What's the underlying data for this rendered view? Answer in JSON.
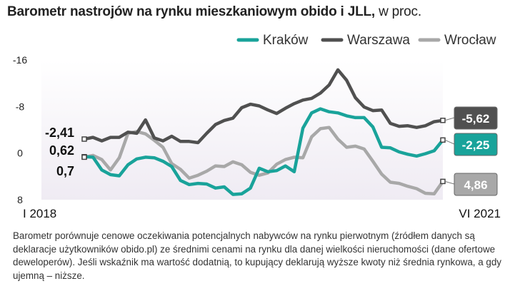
{
  "title": {
    "main": "Barometr nastrojów na rynku mieszkaniowym obido i JLL,",
    "unit": " w proc."
  },
  "note": "Barometr porównuje cenowe oczekiwania potencjalnych nabywców na rynku pierwotnym (źródłem danych są deklaracje użytkowników obido.pl) ze średnimi cenami na rynku dla danej wielkości nieruchomości (dane ofertowe deweloperów). Jeśli wskaźnik ma wartość dodatnią, to kupujący deklarują wyższe kwoty niż średnia rynkowa, a gdy ujemną – niższe.",
  "chart_data": {
    "type": "line",
    "title": "Barometr nastrojów na rynku mieszkaniowym obido i JLL, w proc.",
    "x_start_label": "I 2018",
    "x_end_label": "VI 2021",
    "x": [
      "2018-01",
      "2018-02",
      "2018-03",
      "2018-04",
      "2018-05",
      "2018-06",
      "2018-07",
      "2018-08",
      "2018-09",
      "2018-10",
      "2018-11",
      "2018-12",
      "2019-01",
      "2019-02",
      "2019-03",
      "2019-04",
      "2019-05",
      "2019-06",
      "2019-07",
      "2019-08",
      "2019-09",
      "2019-10",
      "2019-11",
      "2019-12",
      "2020-01",
      "2020-02",
      "2020-03",
      "2020-04",
      "2020-05",
      "2020-06",
      "2020-07",
      "2020-08",
      "2020-09",
      "2020-10",
      "2020-11",
      "2020-12",
      "2021-01",
      "2021-02",
      "2021-03",
      "2021-04",
      "2021-05",
      "2021-06"
    ],
    "y_ticks": [
      -16,
      -8,
      0,
      8
    ],
    "ylim": [
      -16,
      8
    ],
    "y_inverted": true,
    "grid": false,
    "legend_position": "top-right",
    "series": [
      {
        "name": "Kraków",
        "color": "#19a39a",
        "values": [
          0.62,
          0.7,
          2.9,
          3.7,
          3.9,
          2.0,
          1.0,
          0.7,
          0.8,
          1.4,
          2.3,
          4.7,
          5.4,
          5.2,
          5.3,
          6.0,
          5.8,
          7.1,
          7.0,
          6.0,
          2.6,
          3.2,
          3.0,
          2.2,
          3.2,
          -4.3,
          -6.9,
          -7.6,
          -7.1,
          -6.9,
          -6.4,
          -6.1,
          -6.1,
          -4.5,
          -1.0,
          -0.9,
          -0.2,
          0.2,
          0.5,
          0.1,
          -0.4,
          -2.25
        ]
      },
      {
        "name": "Warszawa",
        "color": "#505050",
        "values": [
          -2.41,
          -2.7,
          -2.1,
          -2.7,
          -2.7,
          -3.6,
          -3.4,
          -5.7,
          -2.6,
          -2.1,
          -2.9,
          -2.0,
          -2.0,
          -1.8,
          -3.4,
          -4.9,
          -5.6,
          -6.0,
          -7.8,
          -8.4,
          -8.1,
          -7.4,
          -6.8,
          -7.7,
          -8.5,
          -9.1,
          -9.4,
          -10.3,
          -11.7,
          -14.3,
          -12.5,
          -9.5,
          -7.9,
          -7.3,
          -7.4,
          -5.1,
          -4.6,
          -4.7,
          -4.4,
          -4.7,
          -5.4,
          -5.62
        ]
      },
      {
        "name": "Wrocław",
        "color": "#a8a8a8",
        "values": [
          0.7,
          0.4,
          1.1,
          2.9,
          0.8,
          -3.4,
          -3.7,
          -3.3,
          -2.2,
          -1.0,
          1.8,
          2.8,
          4.3,
          3.8,
          3.1,
          2.2,
          2.3,
          1.5,
          2.0,
          3.3,
          3.8,
          3.4,
          1.9,
          1.1,
          0.7,
          0.8,
          -2.8,
          -4.2,
          -4.4,
          -2.4,
          -1.0,
          -1.2,
          -0.7,
          1.4,
          3.6,
          5.0,
          5.2,
          5.7,
          6.1,
          6.9,
          7.0,
          4.86
        ]
      }
    ],
    "start_labels": [
      "-2,41",
      "0,62",
      "0,7"
    ],
    "end_labels": [
      {
        "series": "Warszawa",
        "text": "-5,62"
      },
      {
        "series": "Kraków",
        "text": "-2,25"
      },
      {
        "series": "Wrocław",
        "text": "4,86"
      }
    ]
  }
}
